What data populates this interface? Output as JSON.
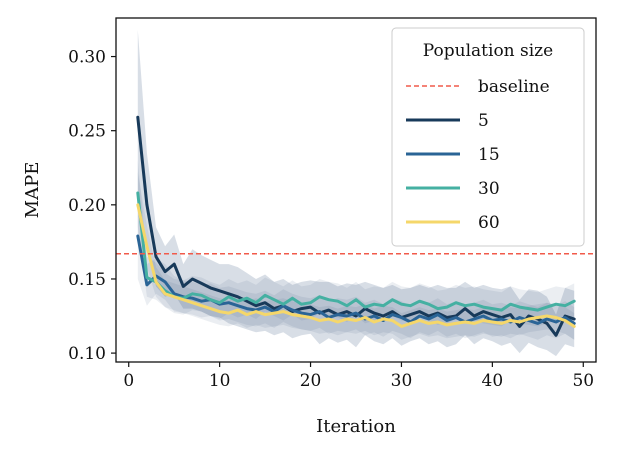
{
  "chart_data": {
    "type": "line",
    "title": "",
    "xlabel": "Iteration",
    "ylabel": "MAPE",
    "xlim": [
      -1.4,
      51.4
    ],
    "ylim": [
      0.094,
      0.326
    ],
    "xticks": [
      0,
      10,
      20,
      30,
      40,
      50
    ],
    "yticks": [
      0.1,
      0.15,
      0.2,
      0.25,
      0.3
    ],
    "ytick_labels": [
      "0.10",
      "0.15",
      "0.20",
      "0.25",
      "0.30"
    ],
    "grid": false,
    "legend": {
      "title": "Population size",
      "placement": "top-right"
    },
    "baseline": {
      "name": "baseline",
      "value": 0.167,
      "color": "#f15a4a",
      "style": "dashed"
    },
    "x": [
      1,
      2,
      3,
      4,
      5,
      6,
      7,
      8,
      9,
      10,
      11,
      12,
      13,
      14,
      15,
      16,
      17,
      18,
      19,
      20,
      21,
      22,
      23,
      24,
      25,
      26,
      27,
      28,
      29,
      30,
      31,
      32,
      33,
      34,
      35,
      36,
      37,
      38,
      39,
      40,
      41,
      42,
      43,
      44,
      45,
      46,
      47,
      48,
      49
    ],
    "series": [
      {
        "name": "5",
        "color": "#183a5a",
        "values": [
          0.259,
          0.2,
          0.165,
          0.155,
          0.16,
          0.145,
          0.15,
          0.147,
          0.144,
          0.142,
          0.14,
          0.138,
          0.135,
          0.132,
          0.134,
          0.13,
          0.132,
          0.128,
          0.13,
          0.131,
          0.127,
          0.129,
          0.126,
          0.128,
          0.125,
          0.13,
          0.127,
          0.125,
          0.128,
          0.124,
          0.126,
          0.128,
          0.125,
          0.127,
          0.124,
          0.125,
          0.13,
          0.125,
          0.128,
          0.126,
          0.124,
          0.126,
          0.118,
          0.125,
          0.123,
          0.12,
          0.112,
          0.125,
          0.123
        ],
        "band_lower": [
          0.2,
          0.17,
          0.145,
          0.138,
          0.14,
          0.13,
          0.13,
          0.128,
          0.125,
          0.124,
          0.12,
          0.118,
          0.116,
          0.114,
          0.115,
          0.112,
          0.114,
          0.11,
          0.112,
          0.113,
          0.106,
          0.11,
          0.107,
          0.109,
          0.104,
          0.112,
          0.108,
          0.106,
          0.11,
          0.105,
          0.108,
          0.11,
          0.106,
          0.108,
          0.104,
          0.106,
          0.112,
          0.106,
          0.11,
          0.108,
          0.105,
          0.107,
          0.1,
          0.107,
          0.104,
          0.102,
          0.098,
          0.106,
          0.104
        ],
        "band_upper": [
          0.318,
          0.235,
          0.185,
          0.172,
          0.18,
          0.16,
          0.17,
          0.166,
          0.163,
          0.16,
          0.16,
          0.158,
          0.154,
          0.15,
          0.153,
          0.148,
          0.15,
          0.146,
          0.148,
          0.149,
          0.148,
          0.148,
          0.145,
          0.147,
          0.146,
          0.148,
          0.146,
          0.144,
          0.146,
          0.143,
          0.144,
          0.146,
          0.144,
          0.146,
          0.144,
          0.144,
          0.148,
          0.144,
          0.146,
          0.144,
          0.143,
          0.145,
          0.136,
          0.143,
          0.142,
          0.138,
          0.126,
          0.144,
          0.142
        ]
      },
      {
        "name": "15",
        "color": "#2a6496",
        "values": [
          0.179,
          0.146,
          0.152,
          0.148,
          0.14,
          0.138,
          0.137,
          0.135,
          0.136,
          0.133,
          0.134,
          0.132,
          0.13,
          0.129,
          0.131,
          0.128,
          0.132,
          0.129,
          0.127,
          0.126,
          0.128,
          0.124,
          0.126,
          0.125,
          0.127,
          0.123,
          0.125,
          0.122,
          0.126,
          0.124,
          0.121,
          0.125,
          0.123,
          0.126,
          0.122,
          0.124,
          0.121,
          0.123,
          0.125,
          0.122,
          0.123,
          0.121,
          0.124,
          0.122,
          0.12,
          0.123,
          0.121,
          0.124,
          0.12
        ],
        "band_lower": [
          0.15,
          0.132,
          0.14,
          0.136,
          0.128,
          0.127,
          0.126,
          0.124,
          0.125,
          0.122,
          0.123,
          0.121,
          0.119,
          0.118,
          0.12,
          0.117,
          0.121,
          0.118,
          0.116,
          0.115,
          0.117,
          0.113,
          0.115,
          0.114,
          0.116,
          0.112,
          0.114,
          0.111,
          0.115,
          0.113,
          0.11,
          0.114,
          0.112,
          0.115,
          0.111,
          0.113,
          0.11,
          0.112,
          0.114,
          0.111,
          0.112,
          0.11,
          0.113,
          0.111,
          0.109,
          0.112,
          0.11,
          0.113,
          0.109
        ],
        "band_upper": [
          0.205,
          0.16,
          0.164,
          0.16,
          0.152,
          0.149,
          0.148,
          0.146,
          0.147,
          0.144,
          0.145,
          0.143,
          0.141,
          0.14,
          0.142,
          0.139,
          0.143,
          0.14,
          0.138,
          0.137,
          0.139,
          0.135,
          0.137,
          0.136,
          0.138,
          0.134,
          0.136,
          0.133,
          0.137,
          0.135,
          0.132,
          0.136,
          0.134,
          0.137,
          0.133,
          0.135,
          0.132,
          0.134,
          0.136,
          0.133,
          0.134,
          0.132,
          0.135,
          0.133,
          0.131,
          0.134,
          0.132,
          0.135,
          0.131
        ]
      },
      {
        "name": "30",
        "color": "#45b0a2",
        "values": [
          0.208,
          0.151,
          0.148,
          0.142,
          0.138,
          0.137,
          0.14,
          0.139,
          0.136,
          0.134,
          0.138,
          0.135,
          0.137,
          0.134,
          0.139,
          0.136,
          0.133,
          0.137,
          0.133,
          0.134,
          0.138,
          0.136,
          0.135,
          0.132,
          0.136,
          0.131,
          0.133,
          0.132,
          0.136,
          0.133,
          0.132,
          0.135,
          0.133,
          0.13,
          0.131,
          0.134,
          0.132,
          0.133,
          0.131,
          0.13,
          0.129,
          0.133,
          0.131,
          0.13,
          0.129,
          0.131,
          0.133,
          0.132,
          0.135
        ],
        "band_lower": [
          0.185,
          0.138,
          0.136,
          0.131,
          0.127,
          0.126,
          0.129,
          0.128,
          0.125,
          0.123,
          0.127,
          0.124,
          0.126,
          0.123,
          0.128,
          0.125,
          0.122,
          0.126,
          0.122,
          0.123,
          0.127,
          0.125,
          0.124,
          0.121,
          0.125,
          0.12,
          0.122,
          0.121,
          0.125,
          0.122,
          0.121,
          0.124,
          0.122,
          0.119,
          0.12,
          0.123,
          0.121,
          0.122,
          0.12,
          0.119,
          0.118,
          0.122,
          0.12,
          0.119,
          0.118,
          0.12,
          0.122,
          0.121,
          0.124
        ],
        "band_upper": [
          0.23,
          0.165,
          0.161,
          0.154,
          0.15,
          0.149,
          0.152,
          0.151,
          0.148,
          0.146,
          0.15,
          0.147,
          0.149,
          0.146,
          0.151,
          0.148,
          0.145,
          0.149,
          0.145,
          0.146,
          0.15,
          0.148,
          0.147,
          0.144,
          0.148,
          0.143,
          0.145,
          0.144,
          0.148,
          0.145,
          0.144,
          0.147,
          0.145,
          0.142,
          0.143,
          0.146,
          0.144,
          0.145,
          0.143,
          0.142,
          0.141,
          0.145,
          0.143,
          0.142,
          0.141,
          0.143,
          0.145,
          0.144,
          0.147
        ]
      },
      {
        "name": "60",
        "color": "#f5d76a",
        "values": [
          0.2,
          0.172,
          0.148,
          0.14,
          0.138,
          0.136,
          0.134,
          0.132,
          0.13,
          0.128,
          0.127,
          0.129,
          0.126,
          0.128,
          0.126,
          0.127,
          0.128,
          0.126,
          0.125,
          0.124,
          0.122,
          0.123,
          0.121,
          0.123,
          0.122,
          0.124,
          0.121,
          0.123,
          0.122,
          0.118,
          0.12,
          0.122,
          0.12,
          0.121,
          0.119,
          0.12,
          0.121,
          0.12,
          0.122,
          0.121,
          0.12,
          0.122,
          0.121,
          0.123,
          0.124,
          0.125,
          0.124,
          0.122,
          0.118
        ],
        "band_lower": [
          0.178,
          0.158,
          0.138,
          0.131,
          0.129,
          0.127,
          0.125,
          0.123,
          0.121,
          0.119,
          0.118,
          0.12,
          0.117,
          0.119,
          0.117,
          0.118,
          0.119,
          0.117,
          0.116,
          0.115,
          0.113,
          0.114,
          0.112,
          0.114,
          0.113,
          0.115,
          0.112,
          0.114,
          0.113,
          0.109,
          0.111,
          0.113,
          0.111,
          0.112,
          0.11,
          0.111,
          0.112,
          0.111,
          0.113,
          0.112,
          0.111,
          0.113,
          0.112,
          0.114,
          0.115,
          0.116,
          0.115,
          0.113,
          0.109
        ],
        "band_upper": [
          0.222,
          0.186,
          0.158,
          0.149,
          0.147,
          0.145,
          0.143,
          0.141,
          0.139,
          0.137,
          0.136,
          0.138,
          0.135,
          0.137,
          0.135,
          0.136,
          0.137,
          0.135,
          0.134,
          0.133,
          0.131,
          0.132,
          0.13,
          0.132,
          0.131,
          0.133,
          0.13,
          0.132,
          0.131,
          0.127,
          0.129,
          0.131,
          0.129,
          0.13,
          0.128,
          0.129,
          0.13,
          0.129,
          0.131,
          0.13,
          0.129,
          0.131,
          0.13,
          0.132,
          0.133,
          0.134,
          0.133,
          0.131,
          0.127
        ]
      }
    ]
  }
}
